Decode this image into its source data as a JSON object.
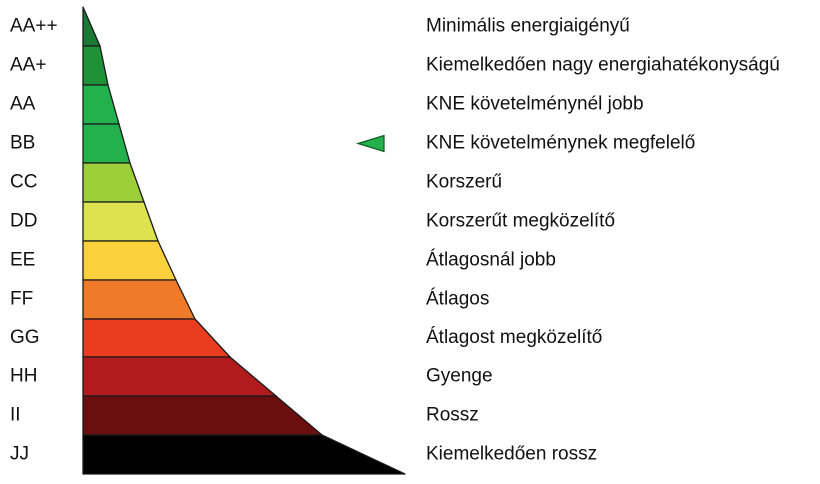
{
  "classes": [
    {
      "code": "AA++",
      "description": "Minimális energiaigényű",
      "color": "#1a7a35"
    },
    {
      "code": "AA+",
      "description": "Kiemelkedően nagy energiahatékonyságú",
      "color": "#1f9238"
    },
    {
      "code": "AA",
      "description": "KNE követelménynél jobb",
      "color": "#22b14c"
    },
    {
      "code": "BB",
      "description": "KNE követelménynek megfelelő",
      "color": "#22b14c"
    },
    {
      "code": "CC",
      "description": "Korszerű",
      "color": "#9ccf3a"
    },
    {
      "code": "DD",
      "description": "Korszerűt megközelítő",
      "color": "#dde34f"
    },
    {
      "code": "EE",
      "description": "Átlagosnál jobb",
      "color": "#fbd23d"
    },
    {
      "code": "FF",
      "description": "Átlagos",
      "color": "#ef7b2a"
    },
    {
      "code": "GG",
      "description": "Átlagost megközelítő",
      "color": "#ea3d1f"
    },
    {
      "code": "HH",
      "description": "Gyenge",
      "color": "#b01b1b"
    },
    {
      "code": "II",
      "description": "Rossz",
      "color": "#6b0e0e"
    },
    {
      "code": "JJ",
      "description": "Kiemelkedően rossz",
      "color": "#000000"
    }
  ],
  "indicator": {
    "class_code": "BB",
    "color": "#22b14c",
    "shape": "triangle-left"
  }
}
